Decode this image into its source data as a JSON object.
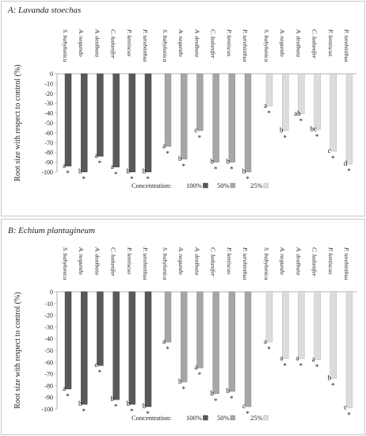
{
  "colors": {
    "c100": "#595959",
    "c50": "#a6a6a6",
    "c25": "#dcdcdc"
  },
  "legend": {
    "label": "Concentration:",
    "items": [
      "100%",
      "50%",
      "25%"
    ]
  },
  "chart_data": [
    {
      "type": "bar",
      "title": "A: Lavanda stoechas",
      "ylabel": "Root size with respect to control (%)",
      "ylim": [
        -100,
        0
      ],
      "yticks": [
        0,
        -10,
        -20,
        -30,
        -40,
        -50,
        -60,
        -70,
        -80,
        -90,
        -100
      ],
      "categories": [
        "S. babylonica",
        "A. negundo",
        "A. dealbata",
        "C. ladanifer",
        "P. lentiscus",
        "P. terebinthus"
      ],
      "series": [
        {
          "name": "100%",
          "values": [
            -94,
            -100,
            -84,
            -95,
            -100,
            -100
          ],
          "letters": [
            "a",
            "b",
            "a",
            "a",
            "b",
            "b"
          ],
          "stars": [
            "*",
            "*",
            "*",
            "*",
            "*",
            "*"
          ]
        },
        {
          "name": "50%",
          "values": [
            -74,
            -87,
            -58,
            -90,
            -90,
            -100
          ],
          "letters": [
            "a",
            "b",
            "c",
            "b",
            "b",
            "b"
          ],
          "stars": [
            "*",
            "*",
            "*",
            "*",
            "*",
            "*"
          ]
        },
        {
          "name": "25%",
          "values": [
            -33,
            -58,
            -41,
            -57,
            -79,
            -92
          ],
          "letters": [
            "a",
            "b",
            "ab",
            "bc",
            "c",
            "d"
          ],
          "stars": [
            "*",
            "*",
            "*",
            "*",
            "*",
            "*"
          ]
        }
      ]
    },
    {
      "type": "bar",
      "title": "B: Echium plantagineum",
      "ylabel": "Root size with respect to control (%)",
      "ylim": [
        -100,
        0
      ],
      "yticks": [
        0,
        -10,
        -20,
        -30,
        -40,
        -50,
        -60,
        -70,
        -80,
        -90,
        -100
      ],
      "categories": [
        "S. babylonica",
        "A. negundo",
        "A. dealbata",
        "C. ladanifer",
        "P. lentiscus",
        "P. terebinthus"
      ],
      "series": [
        {
          "name": "100%",
          "values": [
            -83,
            -96,
            -63,
            -92,
            -96,
            -98
          ],
          "letters": [
            "a",
            "b",
            "c",
            "b",
            "b",
            "b"
          ],
          "stars": [
            "*",
            "*",
            "*",
            "*",
            "*",
            "*"
          ]
        },
        {
          "name": "50%",
          "values": [
            -43,
            -77,
            -65,
            -87,
            -85,
            -98
          ],
          "letters": [
            "a",
            "b",
            "a",
            "b",
            "b",
            "c"
          ],
          "stars": [
            "*",
            "*",
            "*",
            "*",
            "*",
            "*"
          ]
        },
        {
          "name": "25%",
          "values": [
            -43,
            -57,
            -57,
            -58,
            -74,
            -99
          ],
          "letters": [
            "a",
            "a",
            "a",
            "a",
            "b",
            "c"
          ],
          "stars": [
            "*",
            "*",
            "*",
            "*",
            "*",
            "*"
          ]
        }
      ]
    }
  ]
}
